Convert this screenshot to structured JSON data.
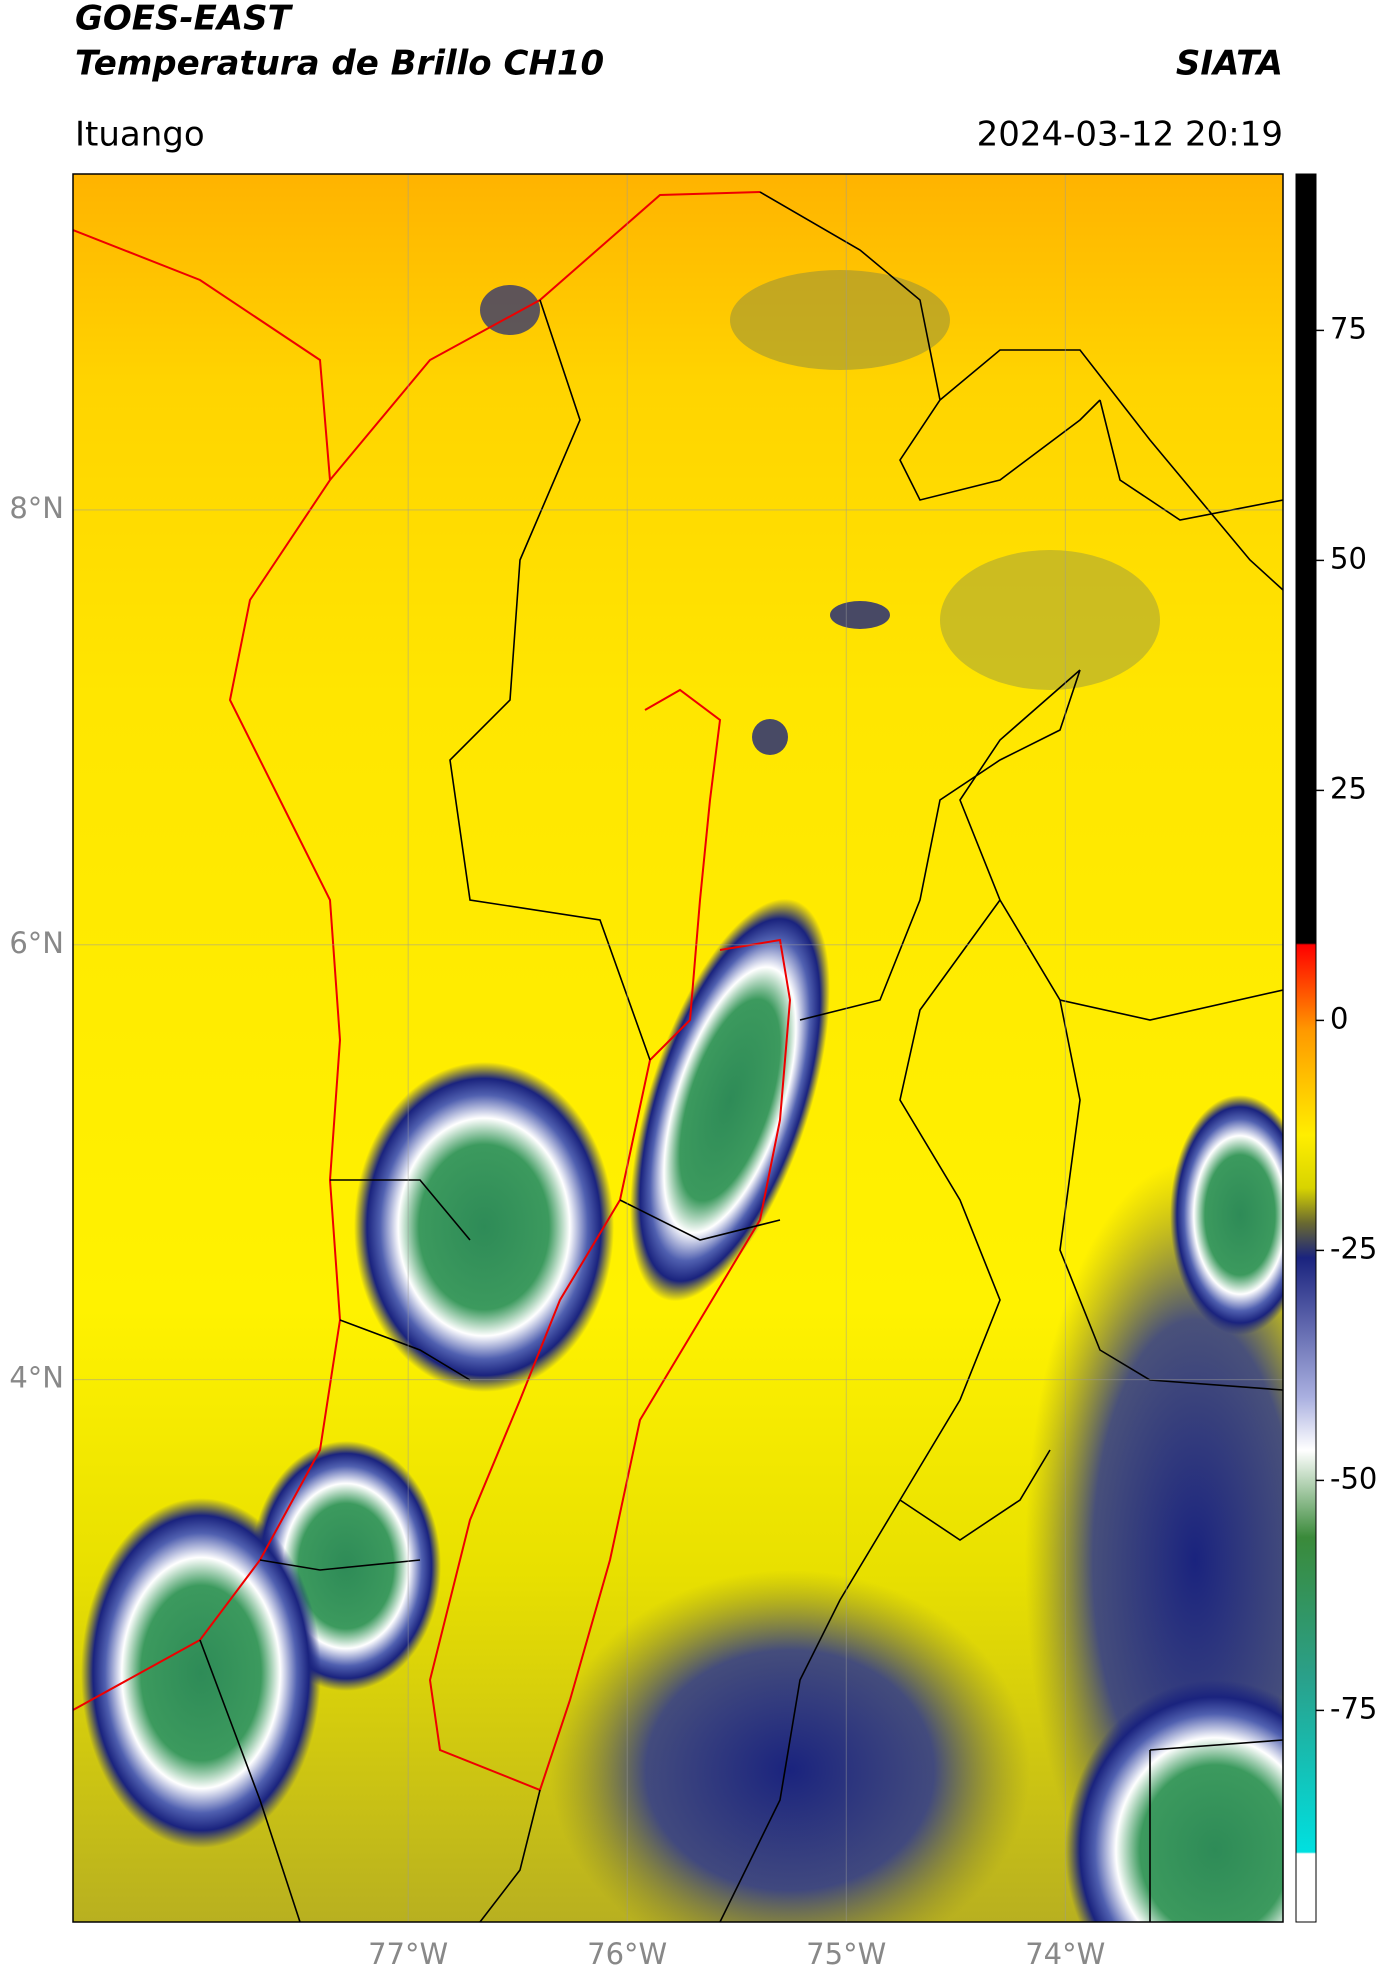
{
  "header": {
    "title": "GOES-EAST",
    "subtitle": "Temperatura de Brillo CH10",
    "source": "SIATA",
    "location": "Ituango",
    "datetime": "2024-03-12 20:19"
  },
  "map": {
    "xlim": [
      -78.53,
      -73.006
    ],
    "ylim": [
      1.506,
      9.545
    ],
    "xticks": [
      {
        "value": -77,
        "label": "77°W"
      },
      {
        "value": -76,
        "label": "76°W"
      },
      {
        "value": -75,
        "label": "75°W"
      },
      {
        "value": -74,
        "label": "74°W"
      }
    ],
    "yticks": [
      {
        "value": 8,
        "label": "8°N"
      },
      {
        "value": 6,
        "label": "6°N"
      },
      {
        "value": 4,
        "label": "4°N"
      }
    ],
    "grid": true
  },
  "colorbar": {
    "clim": [
      -98,
      92
    ],
    "ticks": [
      75,
      50,
      25,
      0,
      -25,
      -50,
      -75
    ]
  }
}
